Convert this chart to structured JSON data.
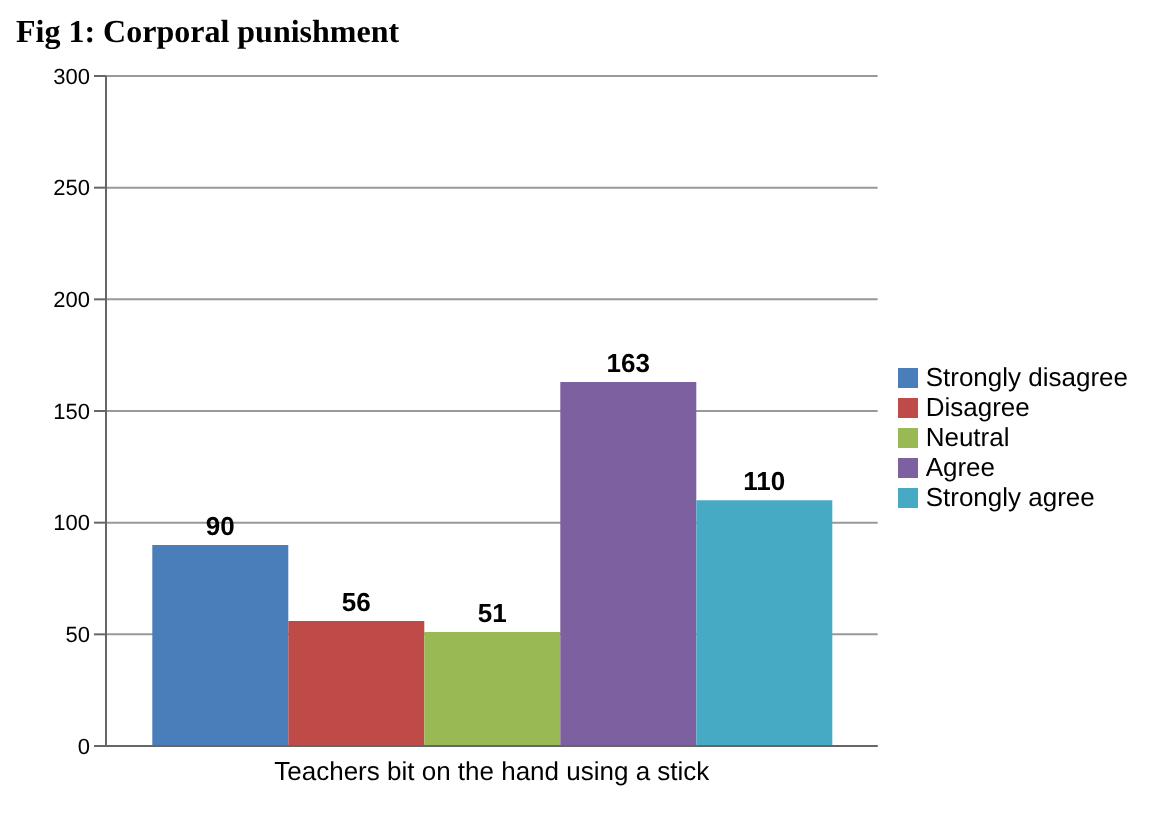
{
  "chart_data": {
    "type": "bar",
    "title": "Fig 1: Corporal punishment",
    "categories": [
      "Teachers bit on the hand using a stick"
    ],
    "series": [
      {
        "name": "Strongly disagree",
        "color": "#4a7ebb",
        "values": [
          90
        ]
      },
      {
        "name": "Disagree",
        "color": "#be4b48",
        "values": [
          56
        ]
      },
      {
        "name": "Neutral",
        "color": "#98b954",
        "values": [
          51
        ]
      },
      {
        "name": "Agree",
        "color": "#7d60a0",
        "values": [
          163
        ]
      },
      {
        "name": "Strongly agree",
        "color": "#46aac5",
        "values": [
          110
        ]
      }
    ],
    "ylim": [
      0,
      300
    ],
    "yticks": [
      0,
      50,
      100,
      150,
      200,
      250,
      300
    ],
    "grid": "y",
    "legend": "right",
    "data_labels": true
  }
}
